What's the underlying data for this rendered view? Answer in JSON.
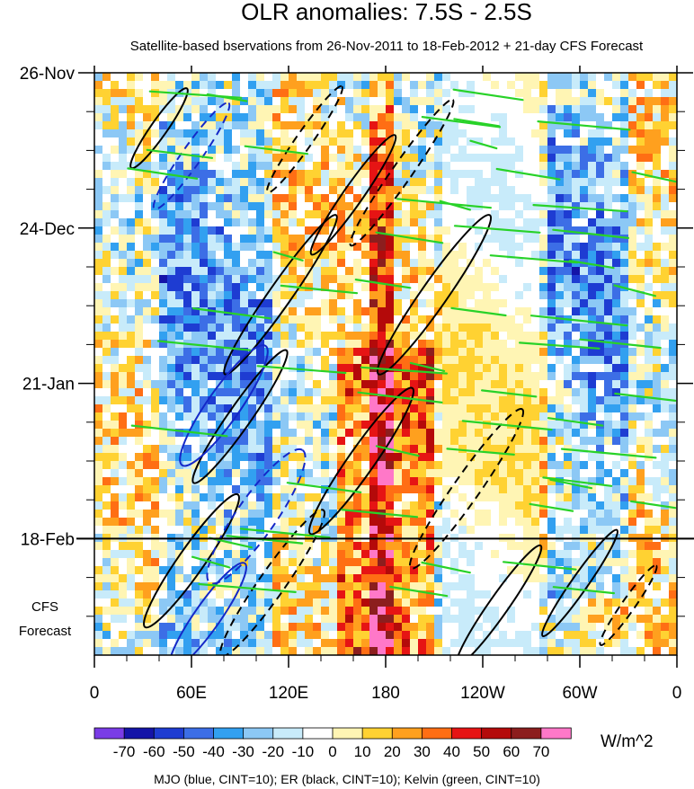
{
  "chart_data": {
    "type": "heatmap",
    "title": "OLR anomalies: 7.5S - 2.5S",
    "subtitle": "Satellite-based bservations from 26-Nov-2011 to 18-Feb-2012 + 21-day CFS Forecast",
    "x_ticks": [
      "0",
      "60E",
      "120E",
      "180",
      "120W",
      "60W",
      "0"
    ],
    "x_tick_lon": [
      0,
      60,
      120,
      180,
      240,
      300,
      360
    ],
    "xlim": [
      0,
      360
    ],
    "y_ticks": [
      "26-Nov",
      "24-Dec",
      "21-Jan",
      "18-Feb"
    ],
    "y_tick_day": [
      0,
      28,
      56,
      84
    ],
    "ylim_days": [
      0,
      105
    ],
    "forecast_start_day": 84,
    "forecast_label_line1": "CFS",
    "forecast_label_line2": "Forecast",
    "colorbar": {
      "labels": [
        "-70",
        "-60",
        "-50",
        "-40",
        "-30",
        "-20",
        "-10",
        "0",
        "10",
        "20",
        "30",
        "40",
        "50",
        "60",
        "70"
      ],
      "colors": [
        "#7a3ce6",
        "#1414a8",
        "#1e3cd2",
        "#3c6ee6",
        "#32a0f0",
        "#8cc8f5",
        "#c8ebfa",
        "#ffffff",
        "#fff5b4",
        "#ffd232",
        "#ffa01e",
        "#ff6e14",
        "#e61414",
        "#b40a0a",
        "#8c1e1e",
        "#ff78c8"
      ],
      "units": "W/m^2"
    },
    "footnote": "MJO (blue, CINT=10); ER (black, CINT=10); Kelvin (green, CINT=10)",
    "contour_series": [
      {
        "name": "MJO",
        "color": "#1428c8"
      },
      {
        "name": "ER",
        "color": "#000000"
      },
      {
        "name": "Kelvin",
        "color": "#28d228"
      }
    ],
    "features": {
      "positive_bands": [
        {
          "lon0": 168,
          "lon1": 185,
          "day0": 0,
          "day1": 105
        },
        {
          "lon0": 150,
          "lon1": 210,
          "day0": 50,
          "day1": 105
        }
      ],
      "negative_bands": [
        {
          "lon0": 40,
          "lon1": 110,
          "day0": 0,
          "day1": 105
        },
        {
          "lon0": 280,
          "lon1": 330,
          "day0": 0,
          "day1": 95
        }
      ],
      "er_ellipses": [
        {
          "lon": 40,
          "day": 10,
          "len": 30,
          "wid": 5,
          "dash": false
        },
        {
          "lon": 130,
          "day": 12,
          "len": 40,
          "wid": 5,
          "dash": true
        },
        {
          "lon": 160,
          "day": 22,
          "len": 45,
          "wid": 6,
          "dash": false
        },
        {
          "lon": 190,
          "day": 18,
          "len": 55,
          "wid": 6,
          "dash": true
        },
        {
          "lon": 115,
          "day": 40,
          "len": 60,
          "wid": 7,
          "dash": false
        },
        {
          "lon": 210,
          "day": 40,
          "len": 60,
          "wid": 8,
          "dash": false
        },
        {
          "lon": 90,
          "day": 62,
          "len": 50,
          "wid": 7,
          "dash": false
        },
        {
          "lon": 165,
          "day": 70,
          "len": 55,
          "wid": 8,
          "dash": false
        },
        {
          "lon": 230,
          "day": 75,
          "len": 60,
          "wid": 8,
          "dash": true
        },
        {
          "lon": 60,
          "day": 88,
          "len": 50,
          "wid": 8,
          "dash": false
        },
        {
          "lon": 110,
          "day": 92,
          "len": 55,
          "wid": 8,
          "dash": true
        },
        {
          "lon": 250,
          "day": 96,
          "len": 45,
          "wid": 6,
          "dash": false
        },
        {
          "lon": 300,
          "day": 92,
          "len": 40,
          "wid": 5,
          "dash": false
        },
        {
          "lon": 330,
          "day": 96,
          "len": 30,
          "wid": 4,
          "dash": true
        }
      ],
      "mjo_ellipses": [
        {
          "lon": 60,
          "day": 15,
          "len": 40,
          "wid": 6,
          "dash": true
        },
        {
          "lon": 80,
          "day": 60,
          "len": 45,
          "wid": 10,
          "dash": false
        },
        {
          "lon": 100,
          "day": 80,
          "len": 50,
          "wid": 12,
          "dash": true
        },
        {
          "lon": 70,
          "day": 98,
          "len": 40,
          "wid": 8,
          "dash": false
        }
      ],
      "kelvin_day_step": 5
    }
  }
}
